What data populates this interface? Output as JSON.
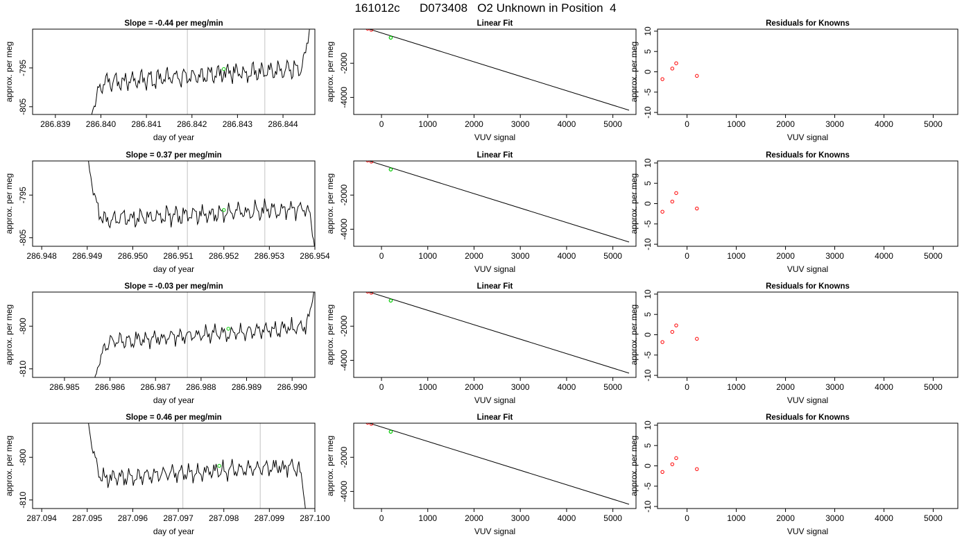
{
  "page_title": "161012c      D073408   O2 Unknown in Position  4",
  "colors": {
    "trace": "#000000",
    "frame": "#000000",
    "guide": "#cccccc",
    "known_point": "#ff0000",
    "unknown_point": "#00cc00"
  },
  "chart_data": [
    {
      "type": "line",
      "title": "Slope =  -0.44  per meg/min",
      "xlabel": "day of year",
      "ylabel": "approx. per meg",
      "xlim": [
        286.8385,
        286.8447
      ],
      "ylim": [
        -807,
        -785
      ],
      "xticks": [
        286.839,
        286.84,
        286.841,
        286.842,
        286.843,
        286.844
      ],
      "xtick_labels": [
        "286.839",
        "286.840",
        "286.841",
        "286.842",
        "286.843",
        "286.844"
      ],
      "yticks": [
        -795,
        -805
      ],
      "ytick_labels": [
        "-795",
        "-805"
      ],
      "guide_lines_x": [
        286.8419,
        286.8436
      ],
      "series": [
        {
          "start": 286.83975,
          "end": 286.8446,
          "start_y": -809,
          "base": -799,
          "trend": 4,
          "noise": 3,
          "seed": 7,
          "rise_y": -783
        }
      ],
      "marker": {
        "x": 286.8427,
        "y": -795.3
      }
    },
    {
      "type": "scatter",
      "title": "Linear Fit",
      "xlabel": "VUV signal",
      "ylabel": "approx. per meg",
      "xlim": [
        -600,
        5500
      ],
      "ylim": [
        -5000,
        0
      ],
      "xticks": [
        0,
        1000,
        2000,
        3000,
        4000,
        5000
      ],
      "xtick_labels": [
        "0",
        "1000",
        "2000",
        "3000",
        "4000",
        "5000"
      ],
      "yticks": [
        -2000,
        -4000
      ],
      "ytick_labels": [
        "-2000",
        "-4000"
      ],
      "fit_line": [
        [
          -500,
          200
        ],
        [
          5350,
          -4750
        ]
      ],
      "known_points": [
        [
          -500,
          200
        ],
        [
          -300,
          30
        ],
        [
          -220,
          -40
        ]
      ],
      "unknown_point": [
        200,
        -500
      ]
    },
    {
      "type": "scatter",
      "title": "Residuals for Knowns",
      "xlabel": "VUV signal",
      "ylabel": "approx. per meg",
      "xlim": [
        -600,
        5500
      ],
      "ylim": [
        -10.5,
        10.5
      ],
      "xticks": [
        0,
        1000,
        2000,
        3000,
        4000,
        5000
      ],
      "xtick_labels": [
        "0",
        "1000",
        "2000",
        "3000",
        "4000",
        "5000"
      ],
      "yticks": [
        10,
        5,
        0,
        -5,
        -10
      ],
      "ytick_labels": [
        "10",
        "5",
        "0",
        "-5",
        "-10"
      ],
      "known_points": [
        [
          -500,
          -1.8
        ],
        [
          -300,
          0.8
        ],
        [
          -220,
          2.1
        ],
        [
          200,
          -1.0
        ]
      ]
    },
    {
      "type": "line",
      "title": "Slope =  0.37  per meg/min",
      "xlabel": "day of year",
      "ylabel": "approx. per meg",
      "xlim": [
        286.9478,
        286.954
      ],
      "ylim": [
        -807,
        -787
      ],
      "xticks": [
        286.948,
        286.949,
        286.95,
        286.951,
        286.952,
        286.953,
        286.954
      ],
      "xtick_labels": [
        "286.948",
        "286.949",
        "286.950",
        "286.951",
        "286.952",
        "286.953",
        "286.954"
      ],
      "yticks": [
        -795,
        -805
      ],
      "ytick_labels": [
        "-795",
        "-805"
      ],
      "guide_lines_x": [
        286.9512,
        286.9529
      ],
      "series": [
        {
          "start": 286.949,
          "end": 286.954,
          "start_y": -785,
          "base": -801,
          "trend": 3,
          "noise": 2.5,
          "seed": 19,
          "fall_y": -808
        }
      ],
      "marker": {
        "x": 286.952,
        "y": -798.5
      }
    },
    {
      "type": "scatter",
      "title": "Linear Fit",
      "xlabel": "VUV signal",
      "ylabel": "approx. per meg",
      "xlim": [
        -600,
        5500
      ],
      "ylim": [
        -5000,
        0
      ],
      "xticks": [
        0,
        1000,
        2000,
        3000,
        4000,
        5000
      ],
      "xtick_labels": [
        "0",
        "1000",
        "2000",
        "3000",
        "4000",
        "5000"
      ],
      "yticks": [
        -2000,
        -4000
      ],
      "ytick_labels": [
        "-2000",
        "-4000"
      ],
      "fit_line": [
        [
          -500,
          200
        ],
        [
          5350,
          -4750
        ]
      ],
      "known_points": [
        [
          -500,
          200
        ],
        [
          -300,
          30
        ],
        [
          -220,
          -40
        ]
      ],
      "unknown_point": [
        200,
        -500
      ]
    },
    {
      "type": "scatter",
      "title": "Residuals for Knowns",
      "xlabel": "VUV signal",
      "ylabel": "approx. per meg",
      "xlim": [
        -600,
        5500
      ],
      "ylim": [
        -10.5,
        10.5
      ],
      "xticks": [
        0,
        1000,
        2000,
        3000,
        4000,
        5000
      ],
      "xtick_labels": [
        "0",
        "1000",
        "2000",
        "3000",
        "4000",
        "5000"
      ],
      "yticks": [
        10,
        5,
        0,
        -5,
        -10
      ],
      "ytick_labels": [
        "10",
        "5",
        "0",
        "-5",
        "-10"
      ],
      "known_points": [
        [
          -500,
          -2.0
        ],
        [
          -300,
          0.5
        ],
        [
          -220,
          2.6
        ],
        [
          200,
          -1.2
        ]
      ]
    },
    {
      "type": "line",
      "title": "Slope =  -0.03  per meg/min",
      "xlabel": "day of year",
      "ylabel": "approx. per meg",
      "xlim": [
        286.9843,
        286.9905
      ],
      "ylim": [
        -812,
        -792
      ],
      "xticks": [
        286.985,
        286.986,
        286.987,
        286.988,
        286.989,
        286.99
      ],
      "xtick_labels": [
        "286.985",
        "286.986",
        "286.987",
        "286.988",
        "286.989",
        "286.990"
      ],
      "yticks": [
        -800,
        -810
      ],
      "ytick_labels": [
        "-800",
        "-810"
      ],
      "guide_lines_x": [
        286.9877,
        286.9894
      ],
      "series": [
        {
          "start": 286.98565,
          "end": 286.9905,
          "start_y": -813,
          "base": -804,
          "trend": 4,
          "noise": 2.2,
          "seed": 31,
          "rise_y": -790
        }
      ],
      "marker": {
        "x": 286.9886,
        "y": -800.6
      }
    },
    {
      "type": "scatter",
      "title": "Linear Fit",
      "xlabel": "VUV signal",
      "ylabel": "approx. per meg",
      "xlim": [
        -600,
        5500
      ],
      "ylim": [
        -5000,
        0
      ],
      "xticks": [
        0,
        1000,
        2000,
        3000,
        4000,
        5000
      ],
      "xtick_labels": [
        "0",
        "1000",
        "2000",
        "3000",
        "4000",
        "5000"
      ],
      "yticks": [
        -2000,
        -4000
      ],
      "ytick_labels": [
        "-2000",
        "-4000"
      ],
      "fit_line": [
        [
          -500,
          200
        ],
        [
          5350,
          -4750
        ]
      ],
      "known_points": [
        [
          -500,
          200
        ],
        [
          -300,
          30
        ],
        [
          -220,
          -40
        ]
      ],
      "unknown_point": [
        200,
        -500
      ]
    },
    {
      "type": "scatter",
      "title": "Residuals for Knowns",
      "xlabel": "VUV signal",
      "ylabel": "approx. per meg",
      "xlim": [
        -600,
        5500
      ],
      "ylim": [
        -10.5,
        10.5
      ],
      "xticks": [
        0,
        1000,
        2000,
        3000,
        4000,
        5000
      ],
      "xtick_labels": [
        "0",
        "1000",
        "2000",
        "3000",
        "4000",
        "5000"
      ],
      "yticks": [
        10,
        5,
        0,
        -5,
        -10
      ],
      "ytick_labels": [
        "10",
        "5",
        "0",
        "-5",
        "-10"
      ],
      "known_points": [
        [
          -500,
          -1.8
        ],
        [
          -300,
          0.7
        ],
        [
          -220,
          2.3
        ],
        [
          200,
          -1.0
        ]
      ]
    },
    {
      "type": "line",
      "title": "Slope =  0.46  per meg/min",
      "xlabel": "day of year",
      "ylabel": "approx. per meg",
      "xlim": [
        287.0938,
        287.1
      ],
      "ylim": [
        -812,
        -792
      ],
      "xticks": [
        287.094,
        287.095,
        287.096,
        287.097,
        287.098,
        287.099,
        287.1
      ],
      "xtick_labels": [
        "287.094",
        "287.095",
        "287.096",
        "287.097",
        "287.098",
        "287.099",
        "287.100"
      ],
      "yticks": [
        -800,
        -810
      ],
      "ytick_labels": [
        "-800",
        "-810"
      ],
      "guide_lines_x": [
        287.0971,
        287.0988
      ],
      "series": [
        {
          "start": 287.095,
          "end": 287.0998,
          "start_y": -790,
          "base": -805,
          "trend": 3,
          "noise": 2.4,
          "seed": 53,
          "fall_y": -813
        }
      ],
      "marker": {
        "x": 287.0979,
        "y": -802
      }
    },
    {
      "type": "scatter",
      "title": "Linear Fit",
      "xlabel": "VUV signal",
      "ylabel": "approx. per meg",
      "xlim": [
        -600,
        5500
      ],
      "ylim": [
        -5000,
        0
      ],
      "xticks": [
        0,
        1000,
        2000,
        3000,
        4000,
        5000
      ],
      "xtick_labels": [
        "0",
        "1000",
        "2000",
        "3000",
        "4000",
        "5000"
      ],
      "yticks": [
        -2000,
        -4000
      ],
      "ytick_labels": [
        "-2000",
        "-4000"
      ],
      "fit_line": [
        [
          -500,
          200
        ],
        [
          5350,
          -4750
        ]
      ],
      "known_points": [
        [
          -500,
          200
        ],
        [
          -300,
          30
        ],
        [
          -220,
          -40
        ]
      ],
      "unknown_point": [
        200,
        -500
      ]
    },
    {
      "type": "scatter",
      "title": "Residuals for Knowns",
      "xlabel": "VUV signal",
      "ylabel": "approx. per meg",
      "xlim": [
        -600,
        5500
      ],
      "ylim": [
        -10.5,
        10.5
      ],
      "xticks": [
        0,
        1000,
        2000,
        3000,
        4000,
        5000
      ],
      "xtick_labels": [
        "0",
        "1000",
        "2000",
        "3000",
        "4000",
        "5000"
      ],
      "yticks": [
        10,
        5,
        0,
        -5,
        -10
      ],
      "ytick_labels": [
        "10",
        "5",
        "0",
        "-5",
        "-10"
      ],
      "known_points": [
        [
          -500,
          -1.5
        ],
        [
          -300,
          0.4
        ],
        [
          -220,
          1.9
        ],
        [
          200,
          -0.8
        ]
      ]
    }
  ]
}
